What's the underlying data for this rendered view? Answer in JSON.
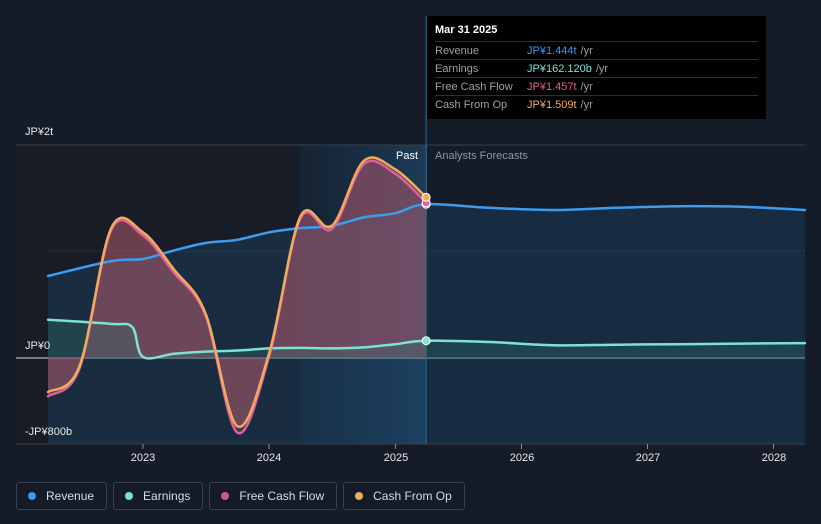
{
  "tooltip": {
    "date": "Mar 31 2025",
    "rows": [
      {
        "name": "Revenue",
        "value": "JP¥1.444t",
        "unit": "/yr",
        "color": "#3b9cf0"
      },
      {
        "name": "Earnings",
        "value": "JP¥162.120b",
        "unit": "/yr",
        "color": "#7de3d1"
      },
      {
        "name": "Free Cash Flow",
        "value": "JP¥1.457t",
        "unit": "/yr",
        "color": "#e0609a"
      },
      {
        "name": "Cash From Op",
        "value": "JP¥1.509t",
        "unit": "/yr",
        "color": "#f0ac5c"
      }
    ]
  },
  "labels": {
    "past": "Past",
    "forecast": "Analysts Forecasts"
  },
  "legend": [
    {
      "label": "Revenue",
      "color": "#3b9cf0"
    },
    {
      "label": "Earnings",
      "color": "#7de3d1"
    },
    {
      "label": "Free Cash Flow",
      "color": "#d2578f"
    },
    {
      "label": "Cash From Op",
      "color": "#f0ac5c"
    }
  ],
  "chart_data": {
    "type": "line",
    "y_unit": "JP¥ billions",
    "ylim": [
      -800,
      2000
    ],
    "y_tick_labels": [
      "JP¥2t",
      "JP¥0",
      "-JP¥800b"
    ],
    "x_tick_labels": [
      "2023",
      "2024",
      "2025",
      "2026",
      "2027",
      "2028"
    ],
    "x_range": [
      "2022-04-01",
      "2028-04-01"
    ],
    "past_end": "2025-03-31",
    "highlight_start": "2024-04-01",
    "series": [
      {
        "name": "Revenue",
        "color": "#3b9cf0",
        "points": [
          [
            "2022-04-01",
            770
          ],
          [
            "2022-10-01",
            910
          ],
          [
            "2023-01-01",
            930
          ],
          [
            "2023-04-01",
            1010
          ],
          [
            "2023-07-01",
            1080
          ],
          [
            "2023-10-01",
            1110
          ],
          [
            "2024-01-01",
            1180
          ],
          [
            "2024-04-01",
            1220
          ],
          [
            "2024-07-01",
            1240
          ],
          [
            "2024-10-01",
            1320
          ],
          [
            "2025-01-01",
            1360
          ],
          [
            "2025-03-31",
            1444
          ],
          [
            "2025-10-01",
            1410
          ],
          [
            "2026-04-01",
            1390
          ],
          [
            "2026-10-01",
            1410
          ],
          [
            "2027-04-01",
            1425
          ],
          [
            "2027-10-01",
            1420
          ],
          [
            "2028-04-01",
            1390
          ]
        ]
      },
      {
        "name": "Earnings",
        "color": "#7de3d1",
        "points": [
          [
            "2022-04-01",
            360
          ],
          [
            "2022-10-01",
            320
          ],
          [
            "2022-12-01",
            290
          ],
          [
            "2023-01-01",
            10
          ],
          [
            "2023-04-01",
            40
          ],
          [
            "2023-07-01",
            60
          ],
          [
            "2023-10-01",
            70
          ],
          [
            "2024-01-01",
            90
          ],
          [
            "2024-04-01",
            95
          ],
          [
            "2024-07-01",
            90
          ],
          [
            "2024-10-01",
            100
          ],
          [
            "2025-01-01",
            130
          ],
          [
            "2025-03-31",
            162
          ],
          [
            "2025-10-01",
            150
          ],
          [
            "2026-04-01",
            120
          ],
          [
            "2026-10-01",
            125
          ],
          [
            "2027-04-01",
            130
          ],
          [
            "2027-10-01",
            135
          ],
          [
            "2028-04-01",
            140
          ]
        ]
      },
      {
        "name": "Free Cash Flow",
        "color": "#e0609a",
        "points": [
          [
            "2022-04-01",
            -360
          ],
          [
            "2022-07-01",
            -100
          ],
          [
            "2022-10-01",
            1200
          ],
          [
            "2023-01-01",
            1150
          ],
          [
            "2023-04-01",
            800
          ],
          [
            "2023-07-01",
            400
          ],
          [
            "2023-10-01",
            -700
          ],
          [
            "2024-01-01",
            10
          ],
          [
            "2024-04-01",
            1310
          ],
          [
            "2024-07-01",
            1210
          ],
          [
            "2024-10-01",
            1820
          ],
          [
            "2025-01-01",
            1730
          ],
          [
            "2025-03-31",
            1457
          ]
        ]
      },
      {
        "name": "Cash From Op",
        "color": "#f0ac5c",
        "points": [
          [
            "2022-04-01",
            -320
          ],
          [
            "2022-07-01",
            -80
          ],
          [
            "2022-10-01",
            1220
          ],
          [
            "2023-01-01",
            1180
          ],
          [
            "2023-04-01",
            830
          ],
          [
            "2023-07-01",
            420
          ],
          [
            "2023-10-01",
            -640
          ],
          [
            "2024-01-01",
            40
          ],
          [
            "2024-04-01",
            1330
          ],
          [
            "2024-07-01",
            1240
          ],
          [
            "2024-10-01",
            1850
          ],
          [
            "2025-01-01",
            1770
          ],
          [
            "2025-03-31",
            1509
          ]
        ]
      }
    ]
  }
}
